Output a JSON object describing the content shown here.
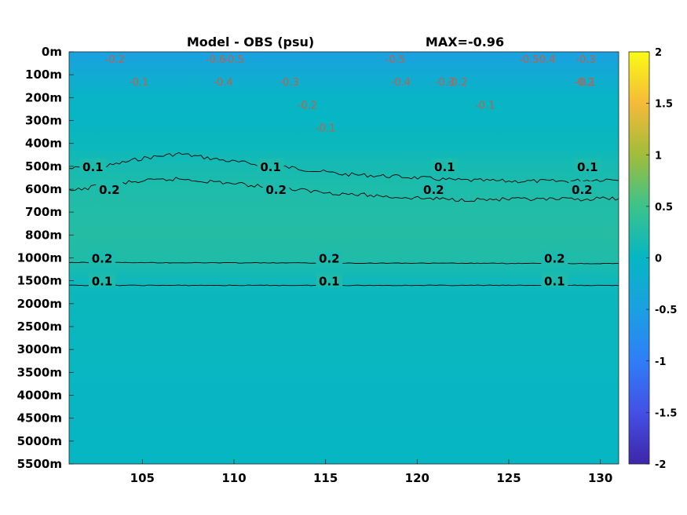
{
  "chart_data": {
    "type": "heatmap",
    "title": "Model - OBS (psu)",
    "subtitle": "MAX=-0.96",
    "y_tick_labels": [
      "0m",
      "100m",
      "200m",
      "300m",
      "400m",
      "500m",
      "600m",
      "700m",
      "800m",
      "1000m",
      "1500m",
      "2000m",
      "2500m",
      "3000m",
      "3500m",
      "4000m",
      "4500m",
      "5000m",
      "5500m"
    ],
    "x_ticks": [
      105,
      110,
      115,
      120,
      125,
      130
    ],
    "x_tick_labels": [
      "105",
      "110",
      "115",
      "120",
      "125",
      "130"
    ],
    "xlim": [
      101,
      131
    ],
    "colorbar": {
      "clim": [
        -2,
        2
      ],
      "ticks": [
        2,
        1.5,
        1,
        0.5,
        0,
        -0.5,
        -1,
        -1.5,
        -2
      ],
      "tick_labels": [
        "2",
        "1.5",
        "1",
        "0.5",
        "0",
        "-0.5",
        "-1",
        "-1.5",
        "-2"
      ],
      "colormap": "parula"
    },
    "depth_profile": [
      {
        "depth": "0m",
        "value": -0.5
      },
      {
        "depth": "100m",
        "value": -0.25
      },
      {
        "depth": "200m",
        "value": -0.05
      },
      {
        "depth": "300m",
        "value": 0.0
      },
      {
        "depth": "400m",
        "value": 0.05
      },
      {
        "depth": "500m",
        "value": 0.15
      },
      {
        "depth": "600m",
        "value": 0.22
      },
      {
        "depth": "700m",
        "value": 0.26
      },
      {
        "depth": "800m",
        "value": 0.28
      },
      {
        "depth": "1000m",
        "value": 0.24
      },
      {
        "depth": "1500m",
        "value": 0.08
      },
      {
        "depth": "2000m",
        "value": 0.05
      },
      {
        "depth": "2500m",
        "value": 0.04
      },
      {
        "depth": "3000m",
        "value": 0.03
      },
      {
        "depth": "3500m",
        "value": 0.02
      },
      {
        "depth": "4000m",
        "value": 0.01
      },
      {
        "depth": "4500m",
        "value": 0.01
      },
      {
        "depth": "5000m",
        "value": 0.0
      },
      {
        "depth": "5500m",
        "value": 0.0
      }
    ],
    "contour_labels": [
      {
        "text": "0.1",
        "lon": 102.3,
        "depth": "500m"
      },
      {
        "text": "0.1",
        "lon": 112.0,
        "depth": "500m"
      },
      {
        "text": "0.1",
        "lon": 121.5,
        "depth": "500m"
      },
      {
        "text": "0.1",
        "lon": 129.3,
        "depth": "500m"
      },
      {
        "text": "0.2",
        "lon": 103.2,
        "depth": "600m"
      },
      {
        "text": "0.2",
        "lon": 112.3,
        "depth": "600m"
      },
      {
        "text": "0.2",
        "lon": 120.9,
        "depth": "600m"
      },
      {
        "text": "0.2",
        "lon": 129.0,
        "depth": "600m"
      },
      {
        "text": "0.2",
        "lon": 102.8,
        "depth": "1000m"
      },
      {
        "text": "0.2",
        "lon": 115.2,
        "depth": "1000m"
      },
      {
        "text": "0.2",
        "lon": 127.5,
        "depth": "1000m"
      },
      {
        "text": "0.1",
        "lon": 102.8,
        "depth": "1500m"
      },
      {
        "text": "0.1",
        "lon": 115.2,
        "depth": "1500m"
      },
      {
        "text": "0.1",
        "lon": 127.5,
        "depth": "1500m"
      }
    ],
    "neg_contour_labels": [
      {
        "text": "-0.2",
        "lon": 103.5,
        "depth": "0m"
      },
      {
        "text": "-0.1",
        "lon": 104.8,
        "depth": "100m"
      },
      {
        "text": "-0.6",
        "lon": 109.0,
        "depth": "0m"
      },
      {
        "text": "-0.5",
        "lon": 110.0,
        "depth": "0m"
      },
      {
        "text": "-0.4",
        "lon": 109.4,
        "depth": "100m"
      },
      {
        "text": "-0.3",
        "lon": 113.0,
        "depth": "100m"
      },
      {
        "text": "-0.2",
        "lon": 114.0,
        "depth": "200m"
      },
      {
        "text": "-0.1",
        "lon": 115.0,
        "depth": "300m"
      },
      {
        "text": "-0.5",
        "lon": 118.8,
        "depth": "0m"
      },
      {
        "text": "-0.4",
        "lon": 119.1,
        "depth": "100m"
      },
      {
        "text": "-0.3",
        "lon": 121.5,
        "depth": "100m"
      },
      {
        "text": "-0.2",
        "lon": 122.2,
        "depth": "100m"
      },
      {
        "text": "-0.1",
        "lon": 123.7,
        "depth": "200m"
      },
      {
        "text": "-0.5",
        "lon": 126.1,
        "depth": "0m"
      },
      {
        "text": "-0.4",
        "lon": 127.0,
        "depth": "0m"
      },
      {
        "text": "-0.3",
        "lon": 129.2,
        "depth": "0m"
      },
      {
        "text": "-0.2",
        "lon": 129.1,
        "depth": "100m"
      },
      {
        "text": "-0.1",
        "lon": 129.2,
        "depth": "100m"
      }
    ],
    "contour_lines": [
      {
        "level": 0.1,
        "depth": "500m",
        "lon": [
          101,
          103,
          105,
          107,
          110,
          113,
          116,
          119,
          122,
          125,
          128,
          131
        ],
        "offset_levels": [
          -0.1,
          0.0,
          0.35,
          0.55,
          0.2,
          -0.05,
          -0.35,
          -0.45,
          -0.6,
          -0.65,
          -0.65,
          -0.55
        ]
      },
      {
        "level": 0.2,
        "depth": "600m",
        "lon": [
          101,
          103,
          105,
          107,
          110,
          113,
          116,
          119,
          122,
          125,
          128,
          131
        ],
        "offset_levels": [
          -0.1,
          0.2,
          0.35,
          0.45,
          0.25,
          0.0,
          -0.2,
          -0.35,
          -0.45,
          -0.45,
          -0.45,
          -0.4
        ]
      },
      {
        "level": 0.2,
        "depth": "1000m",
        "lon": [
          101,
          131
        ],
        "offset_levels": [
          -0.2,
          -0.25
        ]
      },
      {
        "level": 0.1,
        "depth": "1500m",
        "lon": [
          101,
          131
        ],
        "offset_levels": [
          -0.2,
          -0.2
        ]
      }
    ]
  }
}
